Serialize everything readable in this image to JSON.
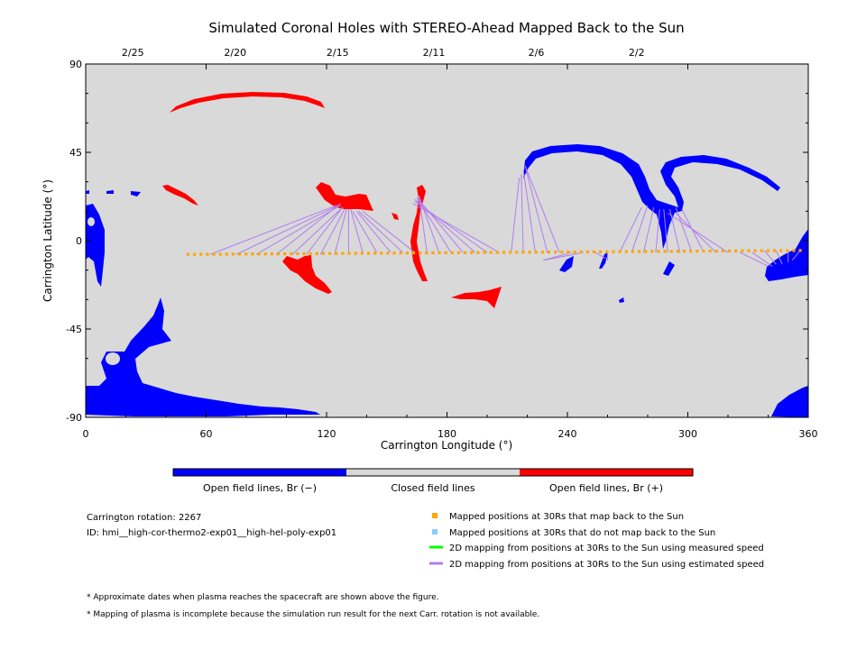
{
  "title": "Simulated Coronal Holes with STEREO-Ahead Mapped Back to the Sun",
  "axes": {
    "xlabel": "Carrington Longitude (°)",
    "ylabel": "Carrington Latitude (°)",
    "x_ticks": [
      "0",
      "60",
      "120",
      "180",
      "240",
      "300",
      "360"
    ],
    "y_ticks": [
      "90",
      "45",
      "0",
      "-45",
      "-90"
    ],
    "date_ticks": [
      "2/25",
      "2/20",
      "2/15",
      "2/11",
      "2/6",
      "2/2"
    ]
  },
  "colorbar": {
    "labels": [
      "Open field lines, Br (−)",
      "Closed field lines",
      "Open field lines, Br (+)"
    ],
    "colors": [
      "#0000ff",
      "#d9d9d9",
      "#ff0000"
    ]
  },
  "info": {
    "rotation": "Carrington rotation: 2267",
    "id": "ID: hmi__high-cor-thermo2-exp01__high-hel-poly-exp01"
  },
  "legend": [
    {
      "label": "Mapped positions at 30Rs that map back to the Sun",
      "color": "#ffa500",
      "marker": "square"
    },
    {
      "label": "Mapped positions at 30Rs that do not map back to the Sun",
      "color": "#87cefa",
      "marker": "square"
    },
    {
      "label": "2D mapping from positions at 30Rs to the Sun using measured speed",
      "color": "#00ff00",
      "marker": "line"
    },
    {
      "label": "2D mapping from positions at 30Rs to the Sun using estimated speed",
      "color": "#b27cf0",
      "marker": "line"
    }
  ],
  "footnotes": [
    "* Approximate dates when plasma reaches the spacecraft are shown above the figure.",
    "* Mapping of plasma is incomplete because the simulation run result for the next Carr. rotation is not available."
  ],
  "chart_data": {
    "type": "scatter",
    "title": "Simulated Coronal Holes with STEREO-Ahead Mapped Back to the Sun",
    "xlabel": "Carrington Longitude (°)",
    "ylabel": "Carrington Latitude (°)",
    "xlim": [
      0,
      360
    ],
    "ylim": [
      -90,
      90
    ],
    "background_color": "#d9d9d9",
    "spacecraft_track": {
      "name": "Mapped positions at 30Rs that map back to the Sun",
      "color": "#ffa500",
      "lon_start": 51,
      "lat_start": -7,
      "lon_end": 356,
      "lat_end": -5,
      "count": 96
    },
    "mapping_lines": [
      {
        "from": [
          62,
          -7
        ],
        "to": [
          125,
          18
        ]
      },
      {
        "from": [
          75,
          -7
        ],
        "to": [
          126,
          18
        ]
      },
      {
        "from": [
          85,
          -7
        ],
        "to": [
          127,
          18
        ]
      },
      {
        "from": [
          95,
          -7
        ],
        "to": [
          127,
          19
        ]
      },
      {
        "from": [
          103,
          -7
        ],
        "to": [
          128,
          17
        ]
      },
      {
        "from": [
          110,
          -7
        ],
        "to": [
          128,
          17
        ]
      },
      {
        "from": [
          117,
          -7
        ],
        "to": [
          129,
          16
        ]
      },
      {
        "from": [
          124,
          -7
        ],
        "to": [
          130,
          16
        ]
      },
      {
        "from": [
          131,
          -7
        ],
        "to": [
          131,
          16
        ]
      },
      {
        "from": [
          138,
          -6
        ],
        "to": [
          132,
          16
        ]
      },
      {
        "from": [
          145,
          -6
        ],
        "to": [
          133,
          15
        ]
      },
      {
        "from": [
          152,
          -6
        ],
        "to": [
          135,
          15
        ]
      },
      {
        "from": [
          158,
          -6
        ],
        "to": [
          136,
          15
        ]
      },
      {
        "from": [
          164,
          -6
        ],
        "to": [
          138,
          15
        ]
      },
      {
        "from": [
          170,
          -6
        ],
        "to": [
          166,
          23
        ]
      },
      {
        "from": [
          176,
          -6
        ],
        "to": [
          166,
          23
        ]
      },
      {
        "from": [
          182,
          -6
        ],
        "to": [
          165,
          22
        ]
      },
      {
        "from": [
          188,
          -6
        ],
        "to": [
          165,
          22
        ]
      },
      {
        "from": [
          194,
          -6
        ],
        "to": [
          164,
          21
        ]
      },
      {
        "from": [
          200,
          -6
        ],
        "to": [
          164,
          20
        ]
      },
      {
        "from": [
          206,
          -6
        ],
        "to": [
          163,
          19
        ]
      },
      {
        "from": [
          212,
          -6
        ],
        "to": [
          216,
          32
        ]
      },
      {
        "from": [
          218,
          -6
        ],
        "to": [
          217,
          34
        ]
      },
      {
        "from": [
          224,
          -6
        ],
        "to": [
          218,
          36
        ]
      },
      {
        "from": [
          230,
          -6
        ],
        "to": [
          219,
          38
        ]
      },
      {
        "from": [
          236,
          -6
        ],
        "to": [
          219,
          38
        ]
      },
      {
        "from": [
          242,
          -6
        ],
        "to": [
          228,
          -10
        ]
      },
      {
        "from": [
          248,
          -6
        ],
        "to": [
          228,
          -10
        ]
      },
      {
        "from": [
          254,
          -6
        ],
        "to": [
          259,
          -9
        ]
      },
      {
        "from": [
          260,
          -6
        ],
        "to": [
          260,
          -10
        ]
      },
      {
        "from": [
          266,
          -6
        ],
        "to": [
          277,
          17
        ]
      },
      {
        "from": [
          272,
          -6
        ],
        "to": [
          280,
          18
        ]
      },
      {
        "from": [
          278,
          -6
        ],
        "to": [
          283,
          17
        ]
      },
      {
        "from": [
          284,
          -6
        ],
        "to": [
          286,
          16
        ]
      },
      {
        "from": [
          290,
          -6
        ],
        "to": [
          288,
          16
        ]
      },
      {
        "from": [
          296,
          -6
        ],
        "to": [
          291,
          16
        ]
      },
      {
        "from": [
          302,
          -6
        ],
        "to": [
          294,
          17
        ]
      },
      {
        "from": [
          308,
          -6
        ],
        "to": [
          297,
          16
        ]
      },
      {
        "from": [
          314,
          -6
        ],
        "to": [
          294,
          14
        ]
      },
      {
        "from": [
          320,
          -6
        ],
        "to": [
          290,
          14
        ]
      },
      {
        "from": [
          326,
          -6
        ],
        "to": [
          340,
          -13
        ]
      },
      {
        "from": [
          332,
          -6
        ],
        "to": [
          342,
          -13
        ]
      },
      {
        "from": [
          338,
          -5
        ],
        "to": [
          344,
          -12
        ]
      },
      {
        "from": [
          344,
          -5
        ],
        "to": [
          347,
          -12
        ]
      },
      {
        "from": [
          350,
          -5
        ],
        "to": [
          350,
          -11
        ]
      },
      {
        "from": [
          356,
          -5
        ],
        "to": [
          352,
          -10
        ]
      }
    ],
    "coronal_holes": [
      {
        "polarity": "negative",
        "region": "south-polar",
        "lon": [
          0,
          100
        ],
        "lat": [
          -90,
          -30
        ]
      },
      {
        "polarity": "negative",
        "region": "south-east",
        "lon": [
          340,
          360
        ],
        "lat": [
          -90,
          -70
        ]
      },
      {
        "polarity": "negative",
        "region": "west-limb",
        "lon": [
          0,
          10
        ],
        "lat": [
          -25,
          20
        ]
      },
      {
        "polarity": "negative",
        "region": "arch",
        "lon": [
          218,
          345
        ],
        "lat": [
          -15,
          48
        ]
      },
      {
        "polarity": "negative",
        "region": "east-edge",
        "lon": [
          335,
          360
        ],
        "lat": [
          -20,
          5
        ]
      },
      {
        "polarity": "positive",
        "region": "north-arc",
        "lon": [
          42,
          120
        ],
        "lat": [
          68,
          75
        ]
      },
      {
        "polarity": "positive",
        "region": "central-north",
        "lon": [
          115,
          145
        ],
        "lat": [
          15,
          29
        ]
      },
      {
        "polarity": "positive",
        "region": "central-south",
        "lon": [
          98,
          120
        ],
        "lat": [
          -27,
          -5
        ]
      },
      {
        "polarity": "positive",
        "region": "small-north",
        "lon": [
          38,
          56
        ],
        "lat": [
          18,
          28
        ]
      },
      {
        "polarity": "positive",
        "region": "filament",
        "lon": [
          161,
          172
        ],
        "lat": [
          -20,
          28
        ]
      },
      {
        "polarity": "positive",
        "region": "south-spot",
        "lon": [
          182,
          210
        ],
        "lat": [
          -33,
          -25
        ]
      }
    ]
  }
}
